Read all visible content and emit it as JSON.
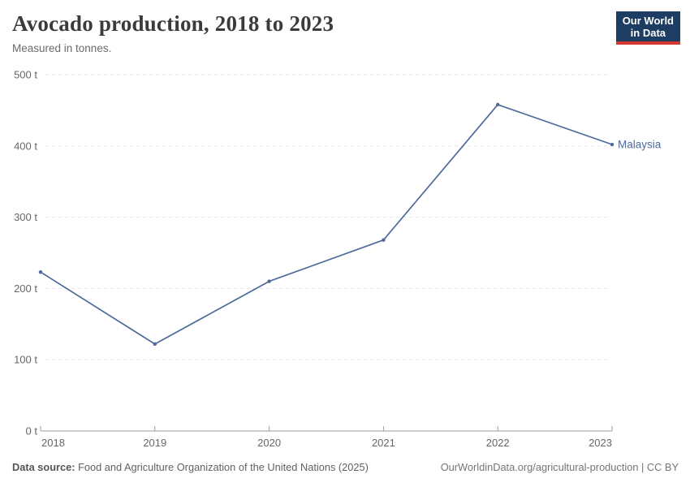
{
  "header": {
    "title": "Avocado production, 2018 to 2023",
    "subtitle": "Measured in tonnes."
  },
  "logo": {
    "line1": "Our World",
    "line2": "in Data",
    "bg_color": "#1d3d63",
    "accent_color": "#d0382e"
  },
  "chart_data": {
    "type": "line",
    "title": "Avocado production, 2018 to 2023",
    "unit": "tonnes",
    "x": [
      2018,
      2019,
      2020,
      2021,
      2022,
      2023
    ],
    "xtick_labels": [
      "2018",
      "2019",
      "2020",
      "2021",
      "2022",
      "2023"
    ],
    "series": [
      {
        "name": "Malaysia",
        "color": "#4d6a9c",
        "values": [
          223,
          122,
          210,
          268,
          458,
          402
        ]
      }
    ],
    "entity_label": "Malaysia",
    "ylim": [
      0,
      500
    ],
    "yticks": [
      {
        "value": 0,
        "label": "0 t"
      },
      {
        "value": 100,
        "label": "100 t"
      },
      {
        "value": 200,
        "label": "200 t"
      },
      {
        "value": 300,
        "label": "300 t"
      },
      {
        "value": 400,
        "label": "400 t"
      },
      {
        "value": 500,
        "label": "500 t"
      }
    ],
    "grid": "horizontal-dashed",
    "legend_position": "end-of-line-label",
    "colors": {
      "gridline": "#e2e2e2",
      "axis_line": "#9e9e9e",
      "tick_text": "#666666"
    }
  },
  "footer": {
    "source_label": "Data source:",
    "source_text": " Food and Agriculture Organization of the United Nations (2025)",
    "credit": "OurWorldinData.org/agricultural-production | CC BY"
  }
}
